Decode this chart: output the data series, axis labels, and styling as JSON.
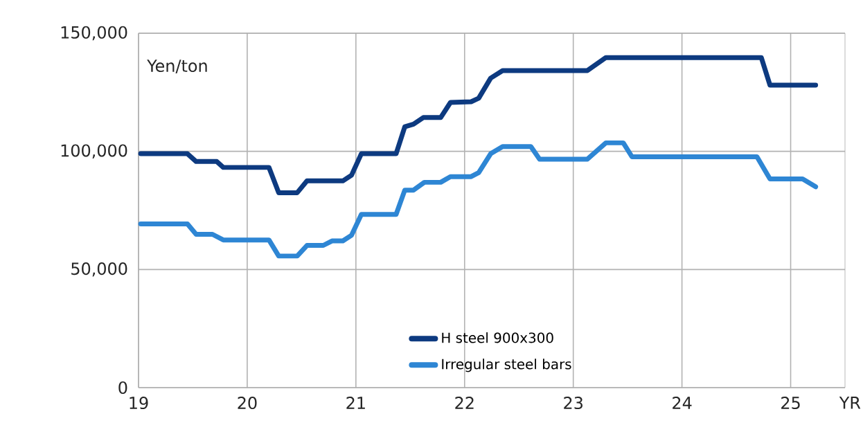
{
  "chart_data": {
    "type": "line",
    "xlabel": "YR",
    "ylabel": "Yen/ton",
    "xlim": [
      19,
      25.5
    ],
    "ylim": [
      0,
      150000
    ],
    "xticks": [
      19,
      20,
      21,
      22,
      23,
      24,
      25
    ],
    "yticks": [
      {
        "value": 0,
        "label": "0"
      },
      {
        "value": 50000,
        "label": "50,000"
      },
      {
        "value": 100000,
        "label": "100,000"
      },
      {
        "value": 150000,
        "label": "150,000"
      }
    ],
    "grid": true,
    "legend": "bottom",
    "marker": "none",
    "line_style": "solid",
    "series": [
      {
        "name": "H steel 900x300",
        "color": "#0d3a80",
        "x": [
          19.02,
          19.45,
          19.53,
          19.72,
          19.78,
          20.2,
          20.29,
          20.46,
          20.55,
          20.88,
          20.96,
          21.05,
          21.37,
          21.45,
          21.53,
          21.62,
          21.78,
          21.87,
          22.06,
          22.13,
          22.24,
          22.35,
          23.13,
          23.3,
          24.73,
          24.81,
          25.23
        ],
        "values": [
          99000,
          99000,
          95700,
          95700,
          93200,
          93200,
          82500,
          82500,
          87500,
          87500,
          89900,
          99000,
          99000,
          110400,
          111500,
          114300,
          114300,
          120700,
          121000,
          122500,
          131000,
          134200,
          134200,
          139700,
          139700,
          128000,
          128000
        ]
      },
      {
        "name": "Irregular steel bars",
        "color": "#2e86d4",
        "x": [
          19.02,
          19.45,
          19.53,
          19.68,
          19.78,
          20.2,
          20.29,
          20.46,
          20.55,
          20.7,
          20.78,
          20.88,
          20.96,
          21.05,
          21.37,
          21.45,
          21.53,
          21.63,
          21.78,
          21.87,
          22.06,
          22.13,
          22.24,
          22.35,
          22.61,
          22.69,
          23.13,
          23.3,
          23.46,
          23.54,
          24.69,
          24.81,
          25.11,
          25.23
        ],
        "values": [
          69300,
          69300,
          64900,
          64900,
          62500,
          62500,
          55700,
          55700,
          60200,
          60200,
          62100,
          62100,
          64500,
          73300,
          73300,
          83600,
          83600,
          86900,
          86900,
          89300,
          89300,
          91000,
          99000,
          102000,
          102000,
          96700,
          96700,
          103600,
          103600,
          97700,
          97700,
          88300,
          88300,
          85000
        ]
      }
    ]
  }
}
